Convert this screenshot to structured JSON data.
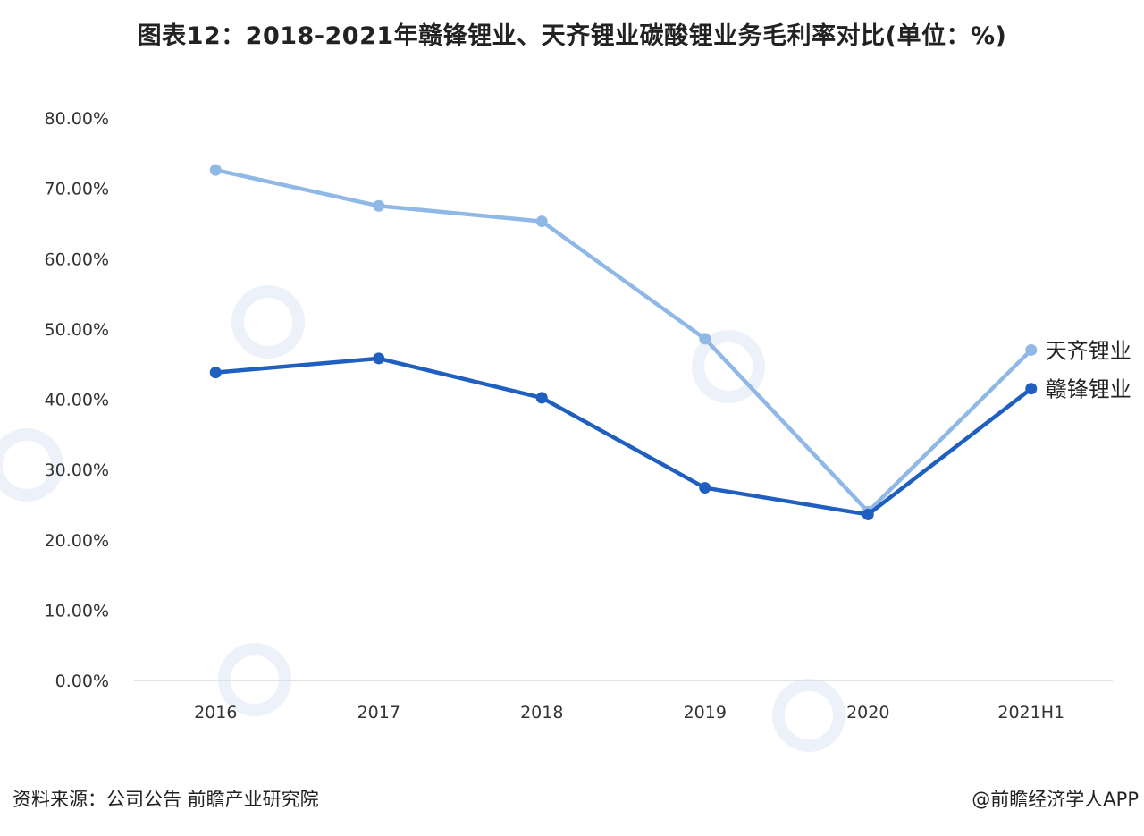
{
  "chart_data": {
    "type": "line",
    "title": "图表12：2018-2021年赣锋锂业、天齐锂业碳酸锂业务毛利率对比(单位：%)",
    "categories": [
      "2016",
      "2017",
      "2018",
      "2019",
      "2020",
      "2021H1"
    ],
    "y_ticks": [
      "0.00%",
      "10.00%",
      "20.00%",
      "30.00%",
      "40.00%",
      "50.00%",
      "60.00%",
      "70.00%",
      "80.00%"
    ],
    "ylim": [
      0,
      80
    ],
    "grid": false,
    "legend": "end-of-line labels",
    "series": [
      {
        "name": "天齐锂业",
        "color": "#8fb8e6",
        "values": [
          72.6,
          67.5,
          65.3,
          48.6,
          24.0,
          47.0
        ]
      },
      {
        "name": "赣锋锂业",
        "color": "#1f5fbf",
        "values": [
          43.8,
          45.8,
          40.2,
          27.4,
          23.6,
          41.5
        ]
      }
    ]
  },
  "footer": {
    "source": "资料来源：公司公告 前瞻产业研究院",
    "credit": "@前瞻经济学人APP"
  }
}
